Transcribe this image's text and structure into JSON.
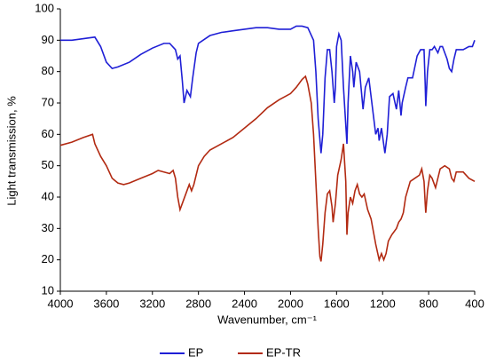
{
  "chart_data": {
    "type": "line",
    "xlabel": "Wavenumber, cm⁻¹",
    "ylabel": "Light transmission, %",
    "xlim": [
      4000,
      400
    ],
    "xticks": [
      4000,
      3600,
      3200,
      2800,
      2400,
      2000,
      1600,
      1200,
      800,
      400
    ],
    "ylim": [
      10,
      100
    ],
    "yticks": [
      10,
      20,
      30,
      40,
      50,
      60,
      70,
      80,
      90,
      100
    ],
    "grid": false,
    "legend": "bottom",
    "series": [
      {
        "name": "EP",
        "color": "#1f1fd6",
        "x": [
          4000,
          3900,
          3800,
          3700,
          3650,
          3600,
          3550,
          3500,
          3400,
          3300,
          3200,
          3100,
          3050,
          3000,
          2980,
          2960,
          2940,
          2925,
          2900,
          2870,
          2850,
          2820,
          2800,
          2700,
          2600,
          2500,
          2400,
          2300,
          2200,
          2100,
          2000,
          1950,
          1900,
          1850,
          1800,
          1780,
          1760,
          1735,
          1720,
          1700,
          1680,
          1660,
          1640,
          1620,
          1610,
          1600,
          1580,
          1560,
          1540,
          1510,
          1500,
          1480,
          1460,
          1450,
          1430,
          1400,
          1370,
          1350,
          1320,
          1300,
          1260,
          1240,
          1230,
          1210,
          1180,
          1160,
          1140,
          1110,
          1080,
          1060,
          1040,
          1030,
          1000,
          980,
          940,
          900,
          870,
          840,
          830,
          825,
          810,
          790,
          770,
          750,
          720,
          700,
          680,
          660,
          640,
          620,
          600,
          580,
          560,
          500,
          450,
          420,
          400
        ],
        "values": [
          90,
          90,
          90.5,
          91,
          88,
          83,
          81,
          81.5,
          83,
          85.5,
          87.5,
          89,
          89,
          87,
          84,
          85,
          77,
          70,
          74,
          72,
          78,
          86,
          89,
          91.5,
          92.5,
          93,
          93.5,
          94,
          94,
          93.5,
          93.5,
          94.5,
          94.5,
          94,
          90,
          80,
          65,
          54,
          60,
          78,
          87,
          87,
          80,
          70,
          75,
          88,
          92,
          90,
          75,
          57,
          70,
          85,
          80,
          75,
          83,
          80,
          68,
          75,
          78,
          72,
          60,
          62,
          58,
          62,
          54,
          60,
          72,
          73,
          68,
          74,
          66,
          70,
          75,
          78,
          78,
          85,
          87,
          87,
          76,
          69,
          80,
          87,
          87,
          88,
          86,
          88,
          88,
          86,
          84,
          81,
          80,
          84,
          87,
          87,
          88,
          88,
          90
        ]
      },
      {
        "name": "EP-TR",
        "color": "#b22a12",
        "x": [
          4000,
          3900,
          3800,
          3720,
          3700,
          3650,
          3600,
          3550,
          3500,
          3450,
          3400,
          3300,
          3200,
          3150,
          3100,
          3050,
          3020,
          3000,
          2980,
          2960,
          2940,
          2900,
          2880,
          2860,
          2840,
          2800,
          2750,
          2700,
          2600,
          2500,
          2400,
          2300,
          2200,
          2100,
          2000,
          1950,
          1900,
          1870,
          1850,
          1820,
          1800,
          1780,
          1760,
          1745,
          1735,
          1720,
          1700,
          1680,
          1660,
          1640,
          1630,
          1610,
          1590,
          1560,
          1540,
          1520,
          1510,
          1500,
          1480,
          1460,
          1440,
          1420,
          1400,
          1380,
          1360,
          1330,
          1300,
          1260,
          1230,
          1210,
          1190,
          1170,
          1150,
          1120,
          1080,
          1060,
          1040,
          1020,
          1000,
          960,
          920,
          880,
          860,
          840,
          830,
          825,
          810,
          790,
          770,
          740,
          700,
          660,
          620,
          600,
          580,
          560,
          500,
          450,
          400
        ],
        "values": [
          56.5,
          57.5,
          59,
          60,
          57,
          53,
          50,
          46,
          44.5,
          44,
          44.5,
          46,
          47.5,
          48.5,
          48,
          47.5,
          48.5,
          46,
          40,
          36,
          38,
          42,
          44,
          42,
          44,
          50,
          53,
          55,
          57,
          59,
          62,
          65,
          68.5,
          71,
          73,
          75,
          77.5,
          78.5,
          76,
          70,
          60,
          45,
          30,
          21,
          19.5,
          25,
          35,
          41,
          42,
          37,
          32,
          38,
          47,
          52,
          57,
          45,
          28,
          35,
          40,
          38,
          42,
          44,
          41,
          40,
          41,
          36,
          33,
          25,
          20,
          22,
          20,
          22,
          26,
          28,
          30,
          32,
          33,
          35,
          40,
          45,
          46,
          47,
          49,
          45,
          38,
          35,
          42,
          47,
          46,
          43,
          49,
          50,
          49,
          46,
          45,
          48,
          48,
          46,
          45
        ]
      }
    ]
  }
}
